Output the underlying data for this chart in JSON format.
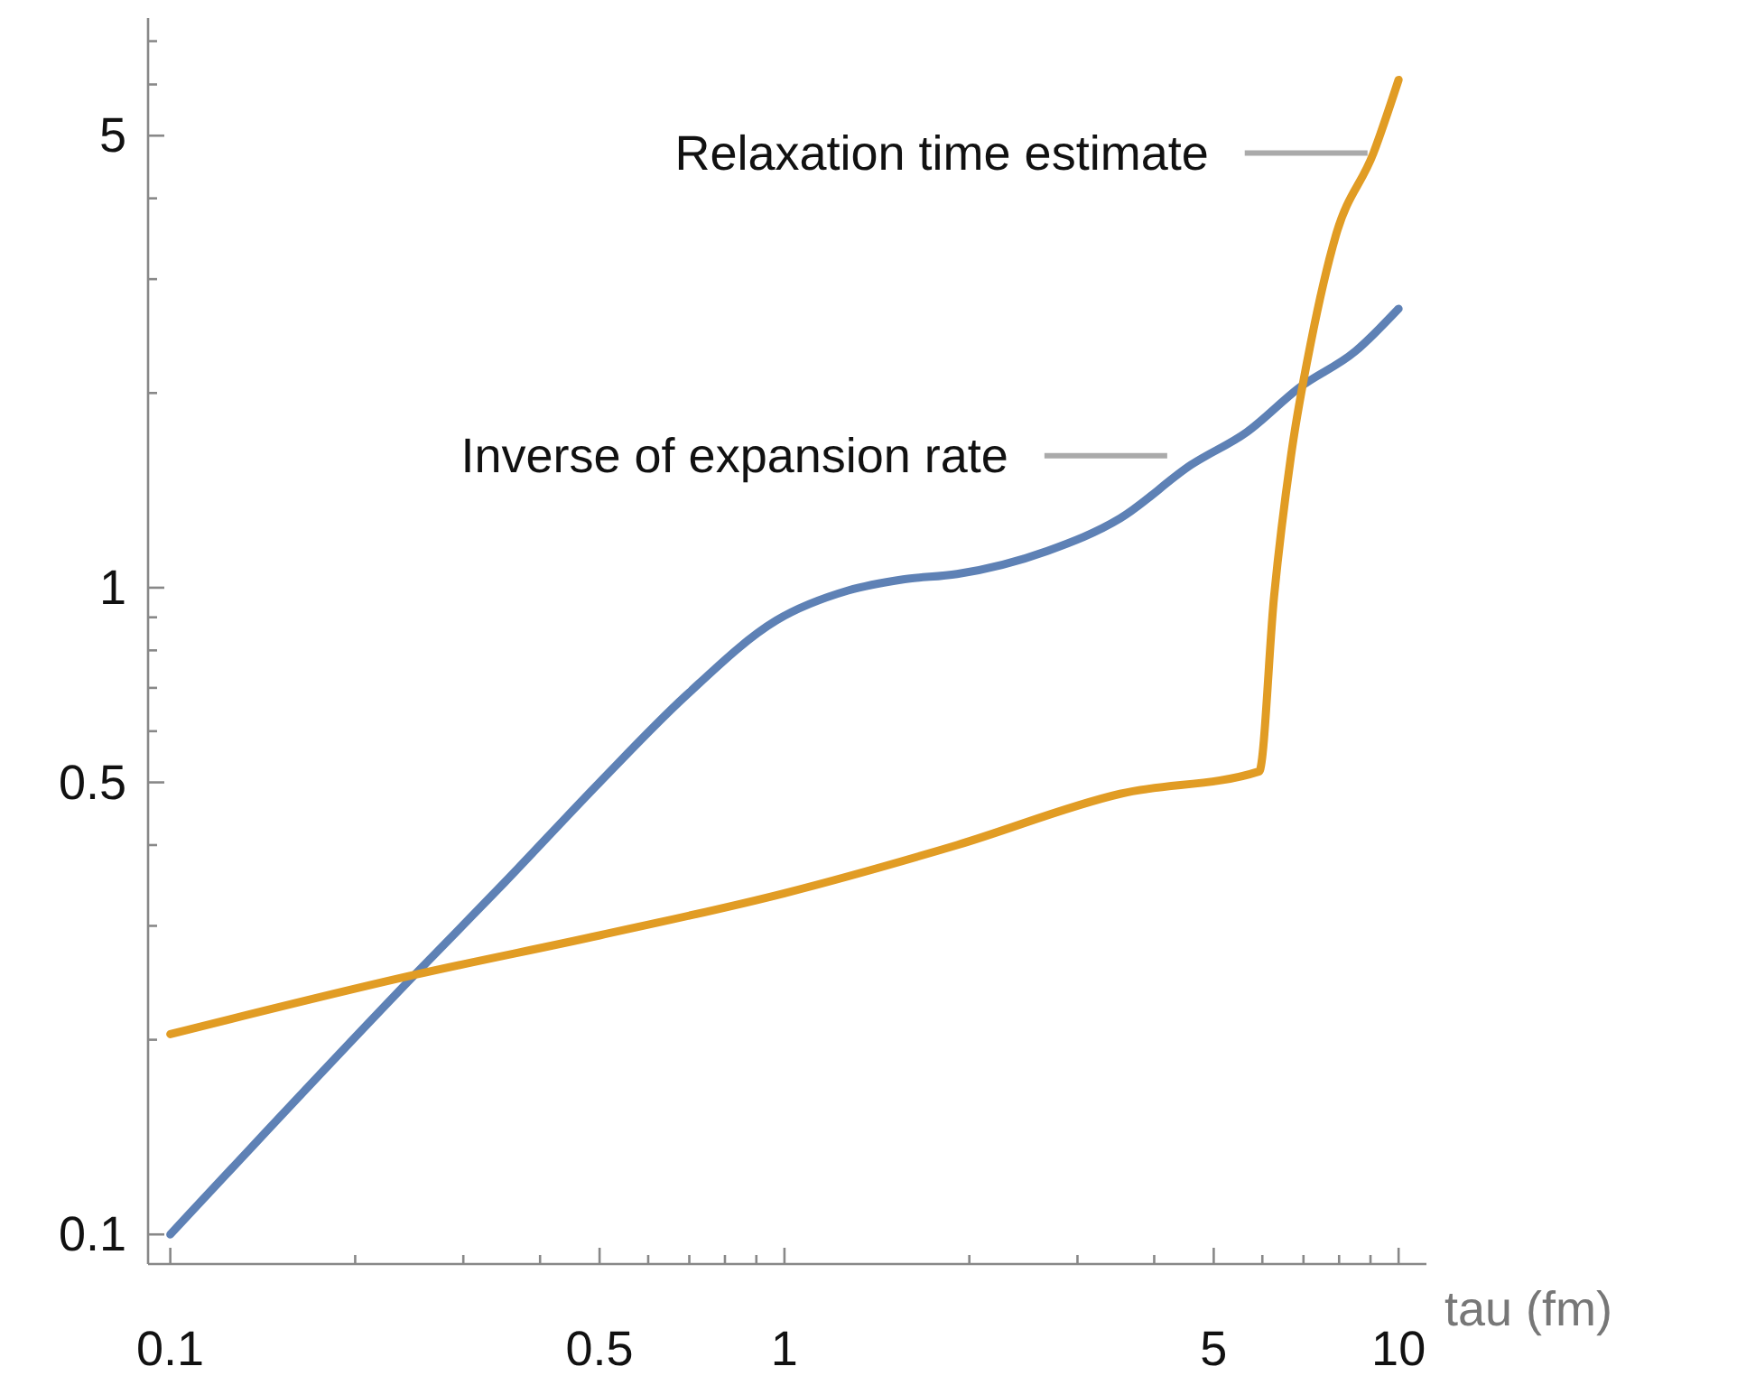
{
  "chart_data": {
    "type": "line",
    "xlabel": "tau (fm)",
    "log": "xy",
    "xlim": [
      0.092,
      11.1
    ],
    "ylim": [
      0.09,
      7.6
    ],
    "xticks": [
      0.1,
      {
        "value": 0.2,
        "label": null
      },
      {
        "value": 0.3,
        "label": null
      },
      {
        "value": 0.4,
        "label": null
      },
      0.5,
      {
        "value": 0.6,
        "label": null
      },
      {
        "value": 0.7,
        "label": null
      },
      {
        "value": 0.8,
        "label": null
      },
      {
        "value": 0.9,
        "label": null
      },
      1,
      {
        "value": 2,
        "label": null
      },
      {
        "value": 3,
        "label": null
      },
      {
        "value": 4,
        "label": null
      },
      5,
      {
        "value": 6,
        "label": null
      },
      {
        "value": 7,
        "label": null
      },
      {
        "value": 8,
        "label": null
      },
      {
        "value": 9,
        "label": null
      },
      10
    ],
    "yticks": [
      0.1,
      {
        "value": 0.2,
        "label": null
      },
      {
        "value": 0.3,
        "label": null
      },
      {
        "value": 0.4,
        "label": null
      },
      0.5,
      {
        "value": 0.6,
        "label": null
      },
      {
        "value": 0.7,
        "label": null
      },
      {
        "value": 0.8,
        "label": null
      },
      {
        "value": 0.9,
        "label": null
      },
      1,
      {
        "value": 2,
        "label": null
      },
      {
        "value": 3,
        "label": null
      },
      {
        "value": 4,
        "label": null
      },
      5,
      {
        "value": 6,
        "label": null
      },
      {
        "value": 7,
        "label": null
      }
    ],
    "grid": false,
    "line_style": "solid",
    "series": [
      {
        "name": "Inverse of expansion rate",
        "color": "#5e81b5",
        "x": [
          0.1,
          0.25,
          0.35,
          0.5,
          0.69,
          0.97,
          1.27,
          1.56,
          1.91,
          2.68,
          3.52,
          4.6,
          5.66,
          6.9,
          8.5,
          10
        ],
        "values": [
          0.1,
          0.252,
          0.35,
          0.5,
          0.68,
          0.89,
          0.99,
          1.03,
          1.05,
          1.14,
          1.28,
          1.55,
          1.74,
          2.04,
          2.32,
          2.7
        ]
      },
      {
        "name": "Relaxation time estimate",
        "color": "#e19c24",
        "x": [
          0.1,
          0.25,
          0.5,
          1,
          1.91,
          3.52,
          5.93,
          6.27,
          6.7,
          7.2,
          7.9,
          9.1,
          10
        ],
        "values": [
          0.204,
          0.252,
          0.29,
          0.337,
          0.4,
          0.48,
          0.52,
          0.97,
          1.63,
          2.4,
          3.5,
          4.7,
          6.1
        ]
      }
    ]
  }
}
